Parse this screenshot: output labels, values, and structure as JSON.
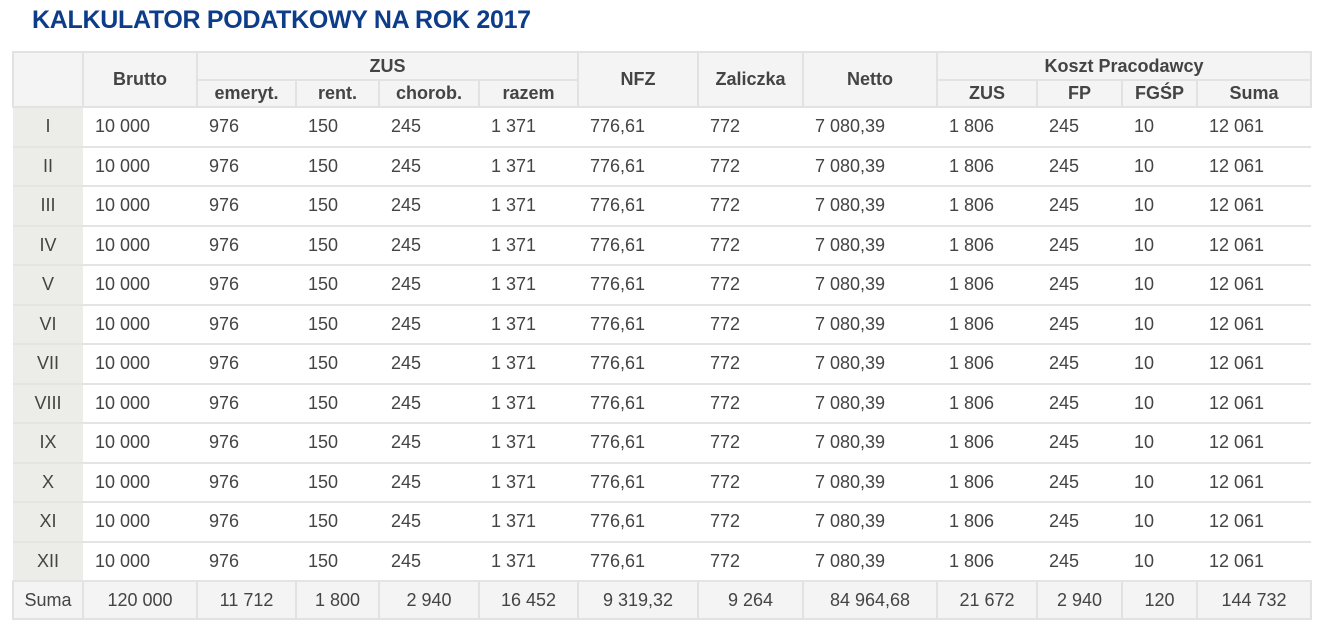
{
  "title": "KALKULATOR PODATKOWY NA ROK 2017",
  "header": {
    "brutto": "Brutto",
    "zus": "ZUS",
    "zus_sub": [
      "emeryt.",
      "rent.",
      "chorob.",
      "razem"
    ],
    "nfz": "NFZ",
    "zaliczka": "Zaliczka",
    "netto": "Netto",
    "koszt": "Koszt Pracodawcy",
    "koszt_sub": [
      "ZUS",
      "FP",
      "FGŚP",
      "Suma"
    ]
  },
  "rows": [
    [
      "I",
      "10 000",
      "976",
      "150",
      "245",
      "1 371",
      "776,61",
      "772",
      "7 080,39",
      "1 806",
      "245",
      "10",
      "12 061"
    ],
    [
      "II",
      "10 000",
      "976",
      "150",
      "245",
      "1 371",
      "776,61",
      "772",
      "7 080,39",
      "1 806",
      "245",
      "10",
      "12 061"
    ],
    [
      "III",
      "10 000",
      "976",
      "150",
      "245",
      "1 371",
      "776,61",
      "772",
      "7 080,39",
      "1 806",
      "245",
      "10",
      "12 061"
    ],
    [
      "IV",
      "10 000",
      "976",
      "150",
      "245",
      "1 371",
      "776,61",
      "772",
      "7 080,39",
      "1 806",
      "245",
      "10",
      "12 061"
    ],
    [
      "V",
      "10 000",
      "976",
      "150",
      "245",
      "1 371",
      "776,61",
      "772",
      "7 080,39",
      "1 806",
      "245",
      "10",
      "12 061"
    ],
    [
      "VI",
      "10 000",
      "976",
      "150",
      "245",
      "1 371",
      "776,61",
      "772",
      "7 080,39",
      "1 806",
      "245",
      "10",
      "12 061"
    ],
    [
      "VII",
      "10 000",
      "976",
      "150",
      "245",
      "1 371",
      "776,61",
      "772",
      "7 080,39",
      "1 806",
      "245",
      "10",
      "12 061"
    ],
    [
      "VIII",
      "10 000",
      "976",
      "150",
      "245",
      "1 371",
      "776,61",
      "772",
      "7 080,39",
      "1 806",
      "245",
      "10",
      "12 061"
    ],
    [
      "IX",
      "10 000",
      "976",
      "150",
      "245",
      "1 371",
      "776,61",
      "772",
      "7 080,39",
      "1 806",
      "245",
      "10",
      "12 061"
    ],
    [
      "X",
      "10 000",
      "976",
      "150",
      "245",
      "1 371",
      "776,61",
      "772",
      "7 080,39",
      "1 806",
      "245",
      "10",
      "12 061"
    ],
    [
      "XI",
      "10 000",
      "976",
      "150",
      "245",
      "1 371",
      "776,61",
      "772",
      "7 080,39",
      "1 806",
      "245",
      "10",
      "12 061"
    ],
    [
      "XII",
      "10 000",
      "976",
      "150",
      "245",
      "1 371",
      "776,61",
      "772",
      "7 080,39",
      "1 806",
      "245",
      "10",
      "12 061"
    ]
  ],
  "sum": [
    "Suma",
    "120 000",
    "11 712",
    "1 800",
    "2 940",
    "16 452",
    "9 319,32",
    "9 264",
    "84 964,68",
    "21 672",
    "2 940",
    "120",
    "144 732"
  ]
}
